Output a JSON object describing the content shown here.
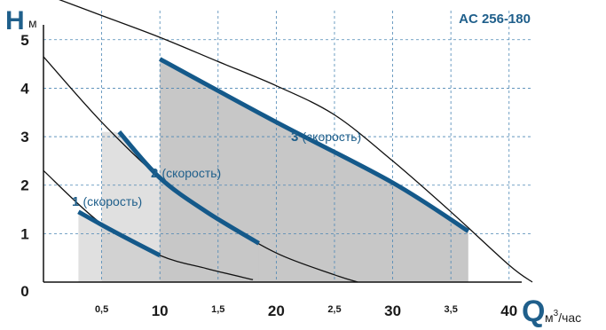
{
  "chart_data": {
    "type": "line",
    "title": "AC 256-180",
    "y_axis": {
      "letter": "H",
      "unit": "м",
      "range": [
        0,
        5.6
      ],
      "ticks": [
        "0",
        "1",
        "2",
        "3",
        "4",
        "5"
      ]
    },
    "x_axis": {
      "letter": "Q",
      "unit_base": "м",
      "unit_sup": "3",
      "unit_tail": "/час",
      "range": [
        0,
        42
      ],
      "major_ticks": [
        {
          "value": 10,
          "label": "10"
        },
        {
          "value": 20,
          "label": "20"
        },
        {
          "value": 30,
          "label": "30"
        },
        {
          "value": 40,
          "label": "40"
        }
      ],
      "minor_ticks": [
        {
          "value": 5,
          "label": "0,5"
        },
        {
          "value": 15,
          "label": "1,5"
        },
        {
          "value": 25,
          "label": "2,5"
        },
        {
          "value": 35,
          "label": "3,5"
        }
      ]
    },
    "grid": true,
    "series": [
      {
        "name": "1",
        "label_word": "(скорость)",
        "curve": [
          [
            0,
            2.3
          ],
          [
            5,
            1.2
          ],
          [
            10,
            0.55
          ],
          [
            14,
            0.28
          ],
          [
            18,
            0.05
          ]
        ],
        "operating": [
          [
            3,
            1.45
          ],
          [
            6,
            1.05
          ],
          [
            10,
            0.55
          ]
        ],
        "zone": [
          3,
          10
        ]
      },
      {
        "name": "2",
        "label_word": "(скорость)",
        "curve": [
          [
            0,
            4.65
          ],
          [
            5,
            3.3
          ],
          [
            10,
            2.15
          ],
          [
            15,
            1.3
          ],
          [
            20,
            0.6
          ],
          [
            25,
            0.15
          ],
          [
            27,
            0.0
          ]
        ],
        "operating": [
          [
            6.5,
            3.1
          ],
          [
            10,
            2.15
          ],
          [
            14,
            1.45
          ],
          [
            18.5,
            0.8
          ]
        ],
        "zone": [
          5,
          18.5
        ]
      },
      {
        "name": "3",
        "label_word": "(скорость)",
        "curve": [
          [
            0,
            5.95
          ],
          [
            5,
            5.5
          ],
          [
            10,
            5.05
          ],
          [
            15,
            4.55
          ],
          [
            20,
            4.05
          ],
          [
            25,
            3.45
          ],
          [
            30,
            2.5
          ],
          [
            35,
            1.45
          ],
          [
            40,
            0.35
          ],
          [
            42,
            0.0
          ]
        ],
        "operating": [
          [
            10,
            4.6
          ],
          [
            20,
            3.3
          ],
          [
            30,
            2.05
          ],
          [
            36.5,
            1.05
          ]
        ],
        "zone": [
          10,
          36.5
        ]
      }
    ],
    "zone_overlap_shades": [
      "#c7c7c7",
      "#a9a9a9",
      "#8e8e8e"
    ]
  },
  "labels": {
    "origin": "0"
  }
}
